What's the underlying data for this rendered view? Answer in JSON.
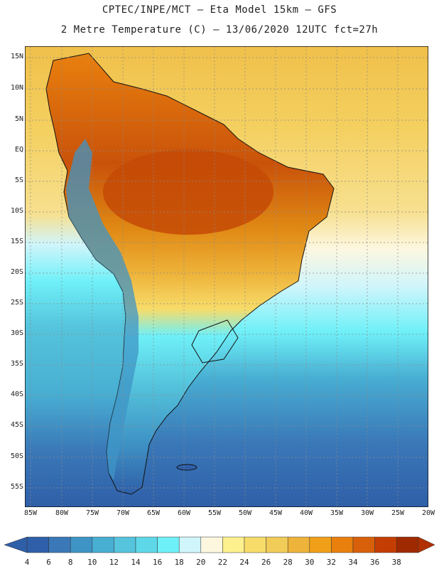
{
  "title_line1": "CPTEC/INPE/MCT –  Eta Model 15km – GFS",
  "title_line2": "2 Metre Temperature (C) – 13/06/2020 12UTC fct=27h",
  "lat_labels": [
    "15N",
    "10N",
    "5N",
    "EQ",
    "5S",
    "10S",
    "15S",
    "20S",
    "25S",
    "30S",
    "35S",
    "40S",
    "45S",
    "50S",
    "55S"
  ],
  "lon_labels": [
    "85W",
    "80W",
    "75W",
    "70W",
    "65W",
    "60W",
    "55W",
    "50W",
    "45W",
    "40W",
    "35W",
    "30W",
    "25W",
    "20W"
  ],
  "colorbar": {
    "labels": [
      "4",
      "6",
      "8",
      "10",
      "12",
      "14",
      "16",
      "18",
      "20",
      "22",
      "24",
      "26",
      "28",
      "30",
      "32",
      "34",
      "36",
      "38"
    ],
    "colors": [
      "#2f5fa8",
      "#3a78b8",
      "#3f94c6",
      "#48aed2",
      "#55c4dc",
      "#5ed8e8",
      "#6ff0f8",
      "#d0f5fb",
      "#fdf7e0",
      "#fdf08e",
      "#f7dc6a",
      "#f2cc58",
      "#eeb33a",
      "#f0a018",
      "#e9800e",
      "#d9600a",
      "#c43e04",
      "#a02a00"
    ],
    "left_arrow_color": "#2f5fa8",
    "right_arrow_color": "#b03000"
  },
  "map_colors": {
    "ocean_north": "#f2cf5a",
    "ocean_south": "#2f5fa8",
    "border": "#111111",
    "grid": "#9a9a9a"
  }
}
